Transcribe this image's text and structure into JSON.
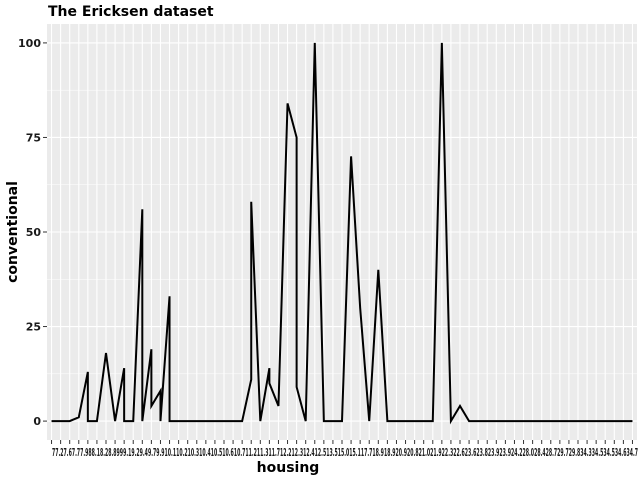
{
  "chart_data": {
    "type": "line",
    "title": "The Ericksen dataset",
    "xlabel": "housing",
    "ylabel": "conventional",
    "ylim": [
      0,
      100
    ],
    "y_ticks": [
      0,
      25,
      50,
      75,
      100
    ],
    "grid": true,
    "colors": {
      "panel": "#ebebeb",
      "grid": "#ffffff",
      "line": "#000000"
    },
    "x_tick_labels": [
      "7",
      "7.2",
      "7.6",
      "7.7",
      "7.9",
      "8",
      "8.1",
      "8.2",
      "8.8",
      "8.9",
      "9",
      "9.1",
      "9.2",
      "9.4",
      "9.7",
      "9.9",
      "10",
      "10.1",
      "10.2",
      "10.3",
      "10.4",
      "10.5",
      "10.6",
      "10.7",
      "11",
      "11.2",
      "11.3",
      "11.7",
      "12",
      "12.1",
      "12.2",
      "12.3",
      "12.4",
      "13",
      "13.5",
      "14.5",
      "15",
      "15.1",
      "17.7",
      "18",
      "18.9",
      "19",
      "20",
      "20.8",
      "21",
      "21.9",
      "22",
      "22.3",
      "22.6",
      "23",
      "23.1",
      "23.9",
      "24",
      "24.2",
      "28",
      "28.4",
      "29.7",
      "34.3",
      "34.4",
      "34.5",
      "34.6"
    ],
    "x_label_text": "77.27.67.77.988.18.28.8999.19.29.49.79.910.110.210.310.410.510.610.711.211.311.712.212.312.412.513.515.015.117.718.918.920.920.821.021.922.322.623.623.823.923.924.228.028.428.729.729.834.334.534.534.634.7",
    "x_label_positions": [
      60,
      69,
      77,
      86,
      97,
      105,
      116,
      124,
      132,
      142,
      152,
      161,
      170,
      178,
      187,
      197,
      205,
      215,
      223,
      232,
      241,
      250,
      259,
      268,
      277,
      287,
      295,
      304,
      313,
      322,
      331,
      341,
      349,
      358,
      367,
      376,
      385,
      394,
      403,
      412,
      421,
      430,
      439,
      448,
      457,
      466,
      475,
      484,
      493,
      502,
      511,
      520,
      529,
      538,
      547,
      556,
      565,
      574,
      583,
      592,
      601,
      610,
      619,
      628
    ],
    "series": [
      {
        "x": [
          0,
          1,
          2,
          3,
          4,
          4,
          5,
          6,
          7,
          8,
          8,
          9,
          10,
          10,
          11,
          11,
          12,
          12,
          13,
          13,
          14,
          15,
          16,
          17,
          18,
          19,
          20,
          21,
          22,
          22,
          23,
          23,
          24,
          24,
          25,
          26,
          27,
          27,
          28,
          29,
          30,
          30,
          31,
          32,
          33,
          34,
          35,
          36,
          37,
          37,
          38,
          39,
          40,
          41,
          42,
          43,
          44,
          45,
          46,
          47,
          48,
          49,
          50,
          51,
          52,
          53,
          54,
          55,
          56,
          57,
          58,
          59,
          60,
          61,
          62,
          63,
          64
        ],
        "y": [
          0,
          0,
          0,
          1,
          13,
          0,
          0,
          18,
          0,
          14,
          0,
          0,
          56,
          0,
          19,
          4,
          8,
          0,
          33,
          0,
          0,
          0,
          0,
          0,
          0,
          0,
          0,
          0,
          11,
          58,
          0,
          0,
          14,
          10,
          4,
          84,
          75,
          9,
          0,
          100,
          0,
          0,
          0,
          0,
          70,
          30,
          0,
          40,
          0,
          0,
          0,
          0,
          0,
          0,
          0,
          100,
          0,
          4,
          0,
          0,
          0,
          0,
          0,
          0,
          0,
          0,
          0,
          0,
          0,
          0,
          0,
          0,
          0,
          0,
          0,
          0,
          0
        ]
      }
    ]
  }
}
